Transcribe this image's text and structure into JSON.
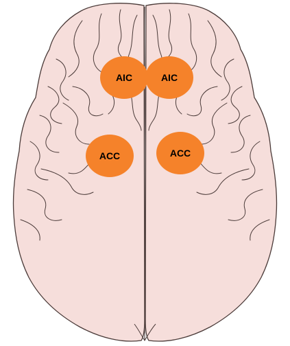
{
  "colors": {
    "brain_fill": "#f6dedb",
    "brain_stroke": "#4a3a38",
    "region_fill": "#f5822a"
  },
  "regions": [
    {
      "id": "aic-left",
      "label": "AIC"
    },
    {
      "id": "aic-right",
      "label": "AIC"
    },
    {
      "id": "acc-left",
      "label": "ACC"
    },
    {
      "id": "acc-right",
      "label": "ACC"
    }
  ]
}
